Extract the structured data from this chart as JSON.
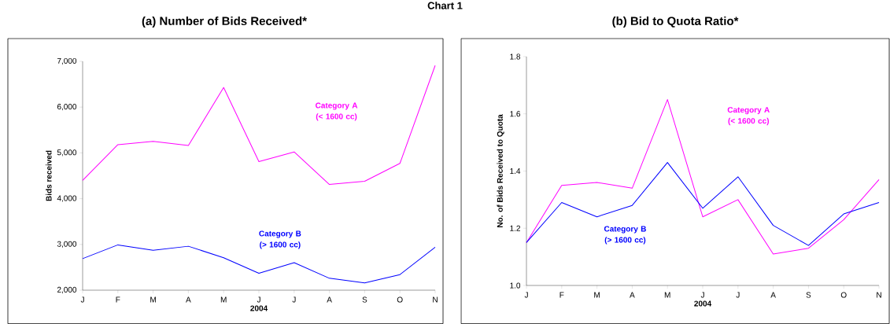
{
  "chart_data": [
    {
      "type": "line",
      "title": "(a) Number of Bids Received*",
      "annotations": [
        "Chart 1"
      ],
      "xlabel": "2004",
      "ylabel": "Bids received",
      "categories": [
        "J",
        "F",
        "M",
        "A",
        "M",
        "J",
        "J",
        "A",
        "S",
        "O",
        "N"
      ],
      "ylim": [
        2000,
        7000
      ],
      "yticks": [
        {
          "value": 2000,
          "label": "2,000"
        },
        {
          "value": 3000,
          "label": "3,000"
        },
        {
          "value": 4000,
          "label": "4,000"
        },
        {
          "value": 5000,
          "label": "5,000"
        },
        {
          "value": 6000,
          "label": "6,000"
        },
        {
          "value": 7000,
          "label": "7,000"
        }
      ],
      "series": [
        {
          "name": "Category A (< 1600 cc)",
          "color": "#ff00ff",
          "values": [
            4400,
            5180,
            5250,
            5160,
            6430,
            4810,
            5020,
            4310,
            4380,
            4770,
            6910
          ]
        },
        {
          "name": "Category B (> 1600 cc)",
          "color": "#0000ff",
          "values": [
            2690,
            2990,
            2870,
            2960,
            2710,
            2370,
            2600,
            2260,
            2160,
            2340,
            2940
          ]
        }
      ]
    },
    {
      "type": "line",
      "title": "(b) Bid to Quota Ratio*",
      "xlabel": "2004",
      "ylabel": "No. of Bids Received to Quota",
      "categories": [
        "J",
        "F",
        "M",
        "A",
        "M",
        "J",
        "J",
        "A",
        "S",
        "O",
        "N"
      ],
      "ylim": [
        1.0,
        1.8
      ],
      "yticks": [
        {
          "value": 1.0,
          "label": "1.0"
        },
        1.2,
        1.4,
        1.6,
        1.8
      ],
      "series": [
        {
          "name": "Category A (< 1600 cc)",
          "color": "#ff00ff",
          "values": [
            1.15,
            1.35,
            1.36,
            1.34,
            1.65,
            1.24,
            1.3,
            1.11,
            1.13,
            1.23,
            1.37
          ]
        },
        {
          "name": "Category B (> 1600 cc)",
          "color": "#0000ff",
          "values": [
            1.15,
            1.29,
            1.24,
            1.28,
            1.43,
            1.27,
            1.38,
            1.21,
            1.14,
            1.25,
            1.29
          ]
        }
      ]
    }
  ]
}
